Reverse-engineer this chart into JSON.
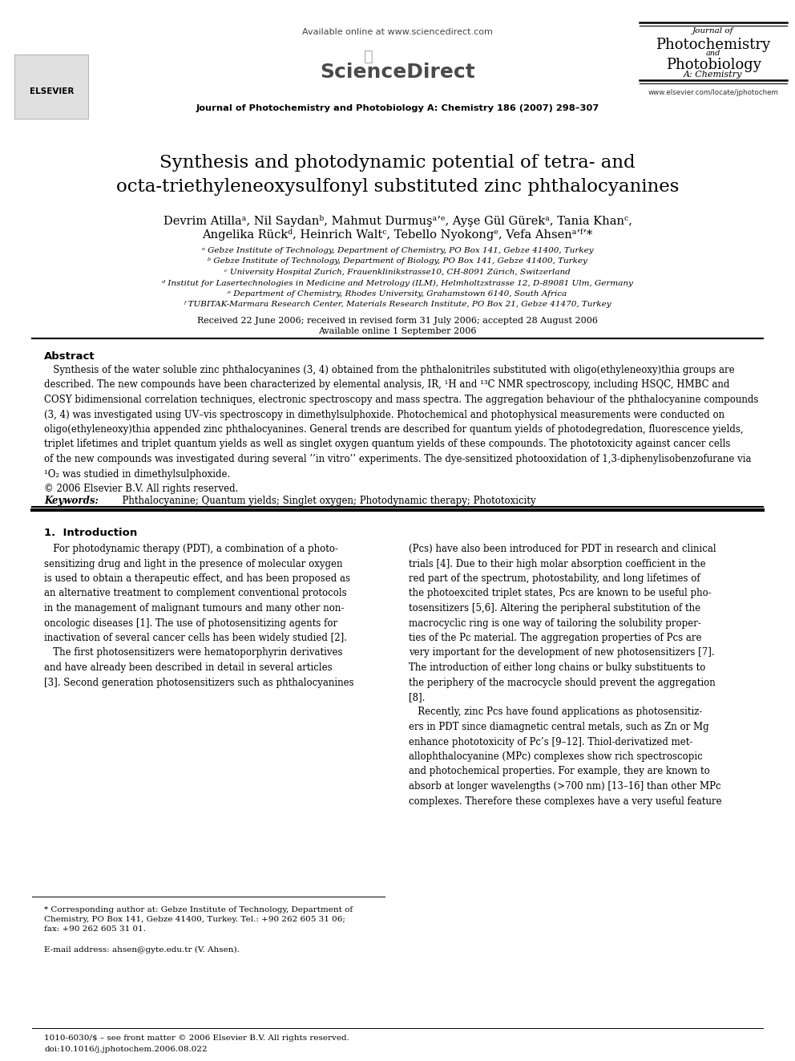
{
  "bg_color": "#ffffff",
  "header": {
    "available_online": "Available online at www.sciencedirect.com",
    "journal_line": "Journal of Photochemistry and Photobiology A: Chemistry 186 (2007) 298–307",
    "journal_name_lines": [
      "Journal of",
      "Photochemistry",
      "and",
      "Photobiology",
      "A: Chemistry"
    ],
    "website": "www.elsevier.com/locate/jphotochem"
  },
  "title": "Synthesis and photodynamic potential of tetra- and\nocta-triethyleneoxysulfonyl substituted zinc phthalocyanines",
  "authors": "Devrim Atillaᵃ, Nil Saydanᵇ, Mahmut Durmuşᵃʳᵉ, Ayşe Gül Gürekᵃ, Tania Khanᶜ,\nAngelika Rückᵈ, Heinrich Waltᶜ, Tebello Nyokongᵉ, Vefa Ahsenᵃʳᶠ*",
  "affiliations": [
    "ᵃ Gebze Institute of Technology, Department of Chemistry, PO Box 141, Gebze 41400, Turkey",
    "ᵇ Gebze Institute of Technology, Department of Biology, PO Box 141, Gebze 41400, Turkey",
    "ᶜ University Hospital Zurich, Frauenklinikstrasse10, CH-8091 Zürich, Switzerland",
    "ᵈ Institut for Lasertechnologies in Medicine and Metrology (ILM), Helmholtzstrasse 12, D-89081 Ulm, Germany",
    "ᵉ Department of Chemistry, Rhodes University, Grahamstown 6140, South Africa",
    "ᶠ TUBITAK-Marmara Research Center, Materials Research Institute, PO Box 21, Gebze 41470, Turkey"
  ],
  "received": "Received 22 June 2006; received in revised form 31 July 2006; accepted 28 August 2006",
  "available": "Available online 1 September 2006",
  "abstract_title": "Abstract",
  "abstract_text": "   Synthesis of the water soluble zinc phthalocyanines (3, 4) obtained from the phthalonitriles substituted with oligo(ethyleneoxy)thia groups are described. The new compounds have been characterized by elemental analysis, IR, ¹H and ¹³C NMR spectroscopy, including HSQC, HMBC and COSY bidimensional correlation techniques, electronic spectroscopy and mass spectra. The aggregation behaviour of the phthalocyanine compounds (3, 4) was investigated using UV–vis spectroscopy in dimethylsulphoxide. Photochemical and photophysical measurements were conducted on oligo(ethyleneoxy)thia appended zinc phthalocyanines. General trends are described for quantum yields of photodegredation, fluorescence yields, triplet lifetimes and triplet quantum yields as well as singlet oxygen quantum yields of these compounds. The phototoxicity against cancer cells of the new compounds was investigated during several in vitro experiments. The dye-sensitized photooxidation of 1,3-diphenylisobenzofurane via ¹O₂ was studied in dimethylsulphoxide.\n© 2006 Elsevier B.V. All rights reserved.",
  "keywords_label": "Keywords:",
  "keywords_text": "  Phthalocyanine; Quantum yields; Singlet oxygen; Photodynamic therapy; Phototoxicity",
  "section1_title": "1.  Introduction",
  "col1_intro": "   For photodynamic therapy (PDT), a combination of a photo-sensitizing drug and light in the presence of molecular oxygen is used to obtain a therapeutic effect, and has been proposed as an alternative treatment to complement conventional protocols in the management of malignant tumours and many other non-oncologic diseases [1]. The use of photosensitizing agents for inactivation of several cancer cells has been widely studied [2].\n   The first photosensitizers were hematoporphyrin derivatives and have already been described in detail in several articles [3]. Second generation photosensitizers such as phthalocyanines",
  "col2_intro": "(Pcs) have also been introduced for PDT in research and clinical trials [4]. Due to their high molar absorption coefficient in the red part of the spectrum, photostability, and long lifetimes of the photoexcited triplet states, Pcs are known to be useful pho-tosensitizers [5,6]. Altering the peripheral substitution of the macrocyclic ring is one way of tailoring the solubility proper-ties of the Pc material. The aggregation properties of Pcs are very important for the development of new photosensitizers [7]. The introduction of either long chains or bulky substituents to the periphery of the macrocycle should prevent the aggregation [8].\n   Recently, zinc Pcs have found applications as photosensitiz-ers in PDT since diamagnetic central metals, such as Zn or Mg enhance phototoxicity of Pc’s [9–12]. Thiol-derivatized met-allophthalocyanine (MPc) complexes show rich spectroscopic and photochemical properties. For example, they are known to absorb at longer wavelengths (>700 nm) [13–16] than other MPc complexes. Therefore these complexes have a very useful feature",
  "footnote_star": "* Corresponding author at: Gebze Institute of Technology, Department of Chemistry, PO Box 141, Gebze 41400, Turkey. Tel.: +90 262 605 31 06; fax: +90 262 605 31 01.",
  "footnote_email": "E-mail address: ahsen@gyte.edu.tr (V. Ahsen).",
  "bottom_line1": "1010-6030/$ – see front matter © 2006 Elsevier B.V. All rights reserved.",
  "bottom_line2": "doi:10.1016/j.jphotochem.2006.08.022"
}
